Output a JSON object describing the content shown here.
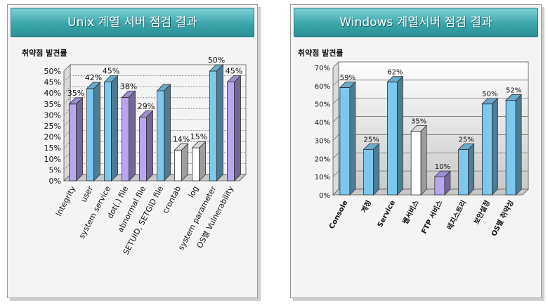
{
  "chart_data": [
    {
      "type": "bar",
      "title": "Unix 계열 서버 점검 결과",
      "subtitle": "취약점 발견률",
      "categories": [
        "Integrity",
        "user",
        "system service",
        "dot(.) file",
        "abnormal file",
        "SETUID, SETGID file",
        "crontab",
        "log",
        "system parameter",
        "OS별 Vulnerability"
      ],
      "values": [
        35,
        42,
        45,
        38,
        29,
        41,
        14,
        15,
        50,
        45
      ],
      "value_labels": [
        "35%",
        "42%",
        "45%",
        "38%",
        "29%",
        "",
        "14%",
        "15%",
        "50%",
        "45%"
      ],
      "bar_colors": [
        "#b9a6f2",
        "#7cc8ef",
        "#7cc8ef",
        "#b9a6f2",
        "#b9a6f2",
        "#7cc8ef",
        "#ffffff",
        "#ffffff",
        "#7cc8ef",
        "#b9a6f2"
      ],
      "y_ticks": [
        "0%",
        "5%",
        "10%",
        "15%",
        "20%",
        "25%",
        "30%",
        "35%",
        "40%",
        "45%",
        "50%"
      ],
      "ylim": [
        0,
        50
      ],
      "grid": true
    },
    {
      "type": "bar",
      "title": "Windows 계열서버 점검 결과",
      "subtitle": "취약점 발견률",
      "categories": [
        "Console",
        "계정",
        "Service",
        "웹서비스",
        "FTP 서비스",
        "레지스트리",
        "보안설정",
        "OS별 취약성"
      ],
      "values": [
        59,
        25,
        62,
        35,
        10,
        25,
        50,
        52
      ],
      "value_labels": [
        "59%",
        "25%",
        "62%",
        "35%",
        "10%",
        "25%",
        "50%",
        "52%"
      ],
      "bar_colors": [
        "#7cc8ef",
        "#7cc8ef",
        "#7cc8ef",
        "#ffffff",
        "#b9a6f2",
        "#7cc8ef",
        "#7cc8ef",
        "#7cc8ef"
      ],
      "y_ticks": [
        "0%",
        "10%",
        "20%",
        "30%",
        "40%",
        "50%",
        "60%",
        "70%"
      ],
      "ylim": [
        0,
        70
      ],
      "grid": true
    }
  ]
}
